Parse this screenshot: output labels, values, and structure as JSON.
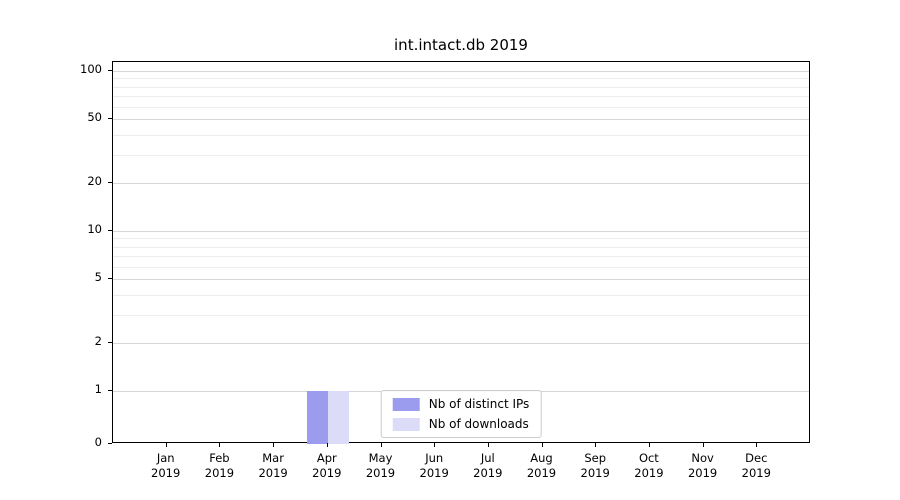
{
  "chart_data": {
    "type": "bar",
    "title": "int.intact.db 2019",
    "categories": [
      "Jan 2019",
      "Feb 2019",
      "Mar 2019",
      "Apr 2019",
      "May 2019",
      "Jun 2019",
      "Jul 2019",
      "Aug 2019",
      "Sep 2019",
      "Oct 2019",
      "Nov 2019",
      "Dec 2019"
    ],
    "series": [
      {
        "name": "Nb of distinct IPs",
        "color": "#9c9cef",
        "values": [
          0,
          0,
          0,
          1,
          0,
          0,
          0,
          0,
          0,
          0,
          0,
          0
        ]
      },
      {
        "name": "Nb of downloads",
        "color": "#dcdcf9",
        "values": [
          0,
          0,
          0,
          1,
          0,
          0,
          0,
          0,
          0,
          0,
          0,
          0
        ]
      }
    ],
    "xlabel": "",
    "ylabel": "",
    "yscale": "symlog",
    "ytick_labels": [
      "0",
      "1",
      "2",
      "5",
      "10",
      "20",
      "50",
      "100"
    ],
    "ytick_values": [
      0,
      1,
      2,
      5,
      10,
      20,
      50,
      100
    ],
    "yminor_values": [
      3,
      4,
      6,
      7,
      8,
      9,
      30,
      40,
      60,
      70,
      80,
      90
    ],
    "ylim": [
      0,
      115
    ],
    "grid": true,
    "legend_position": "lower center"
  }
}
